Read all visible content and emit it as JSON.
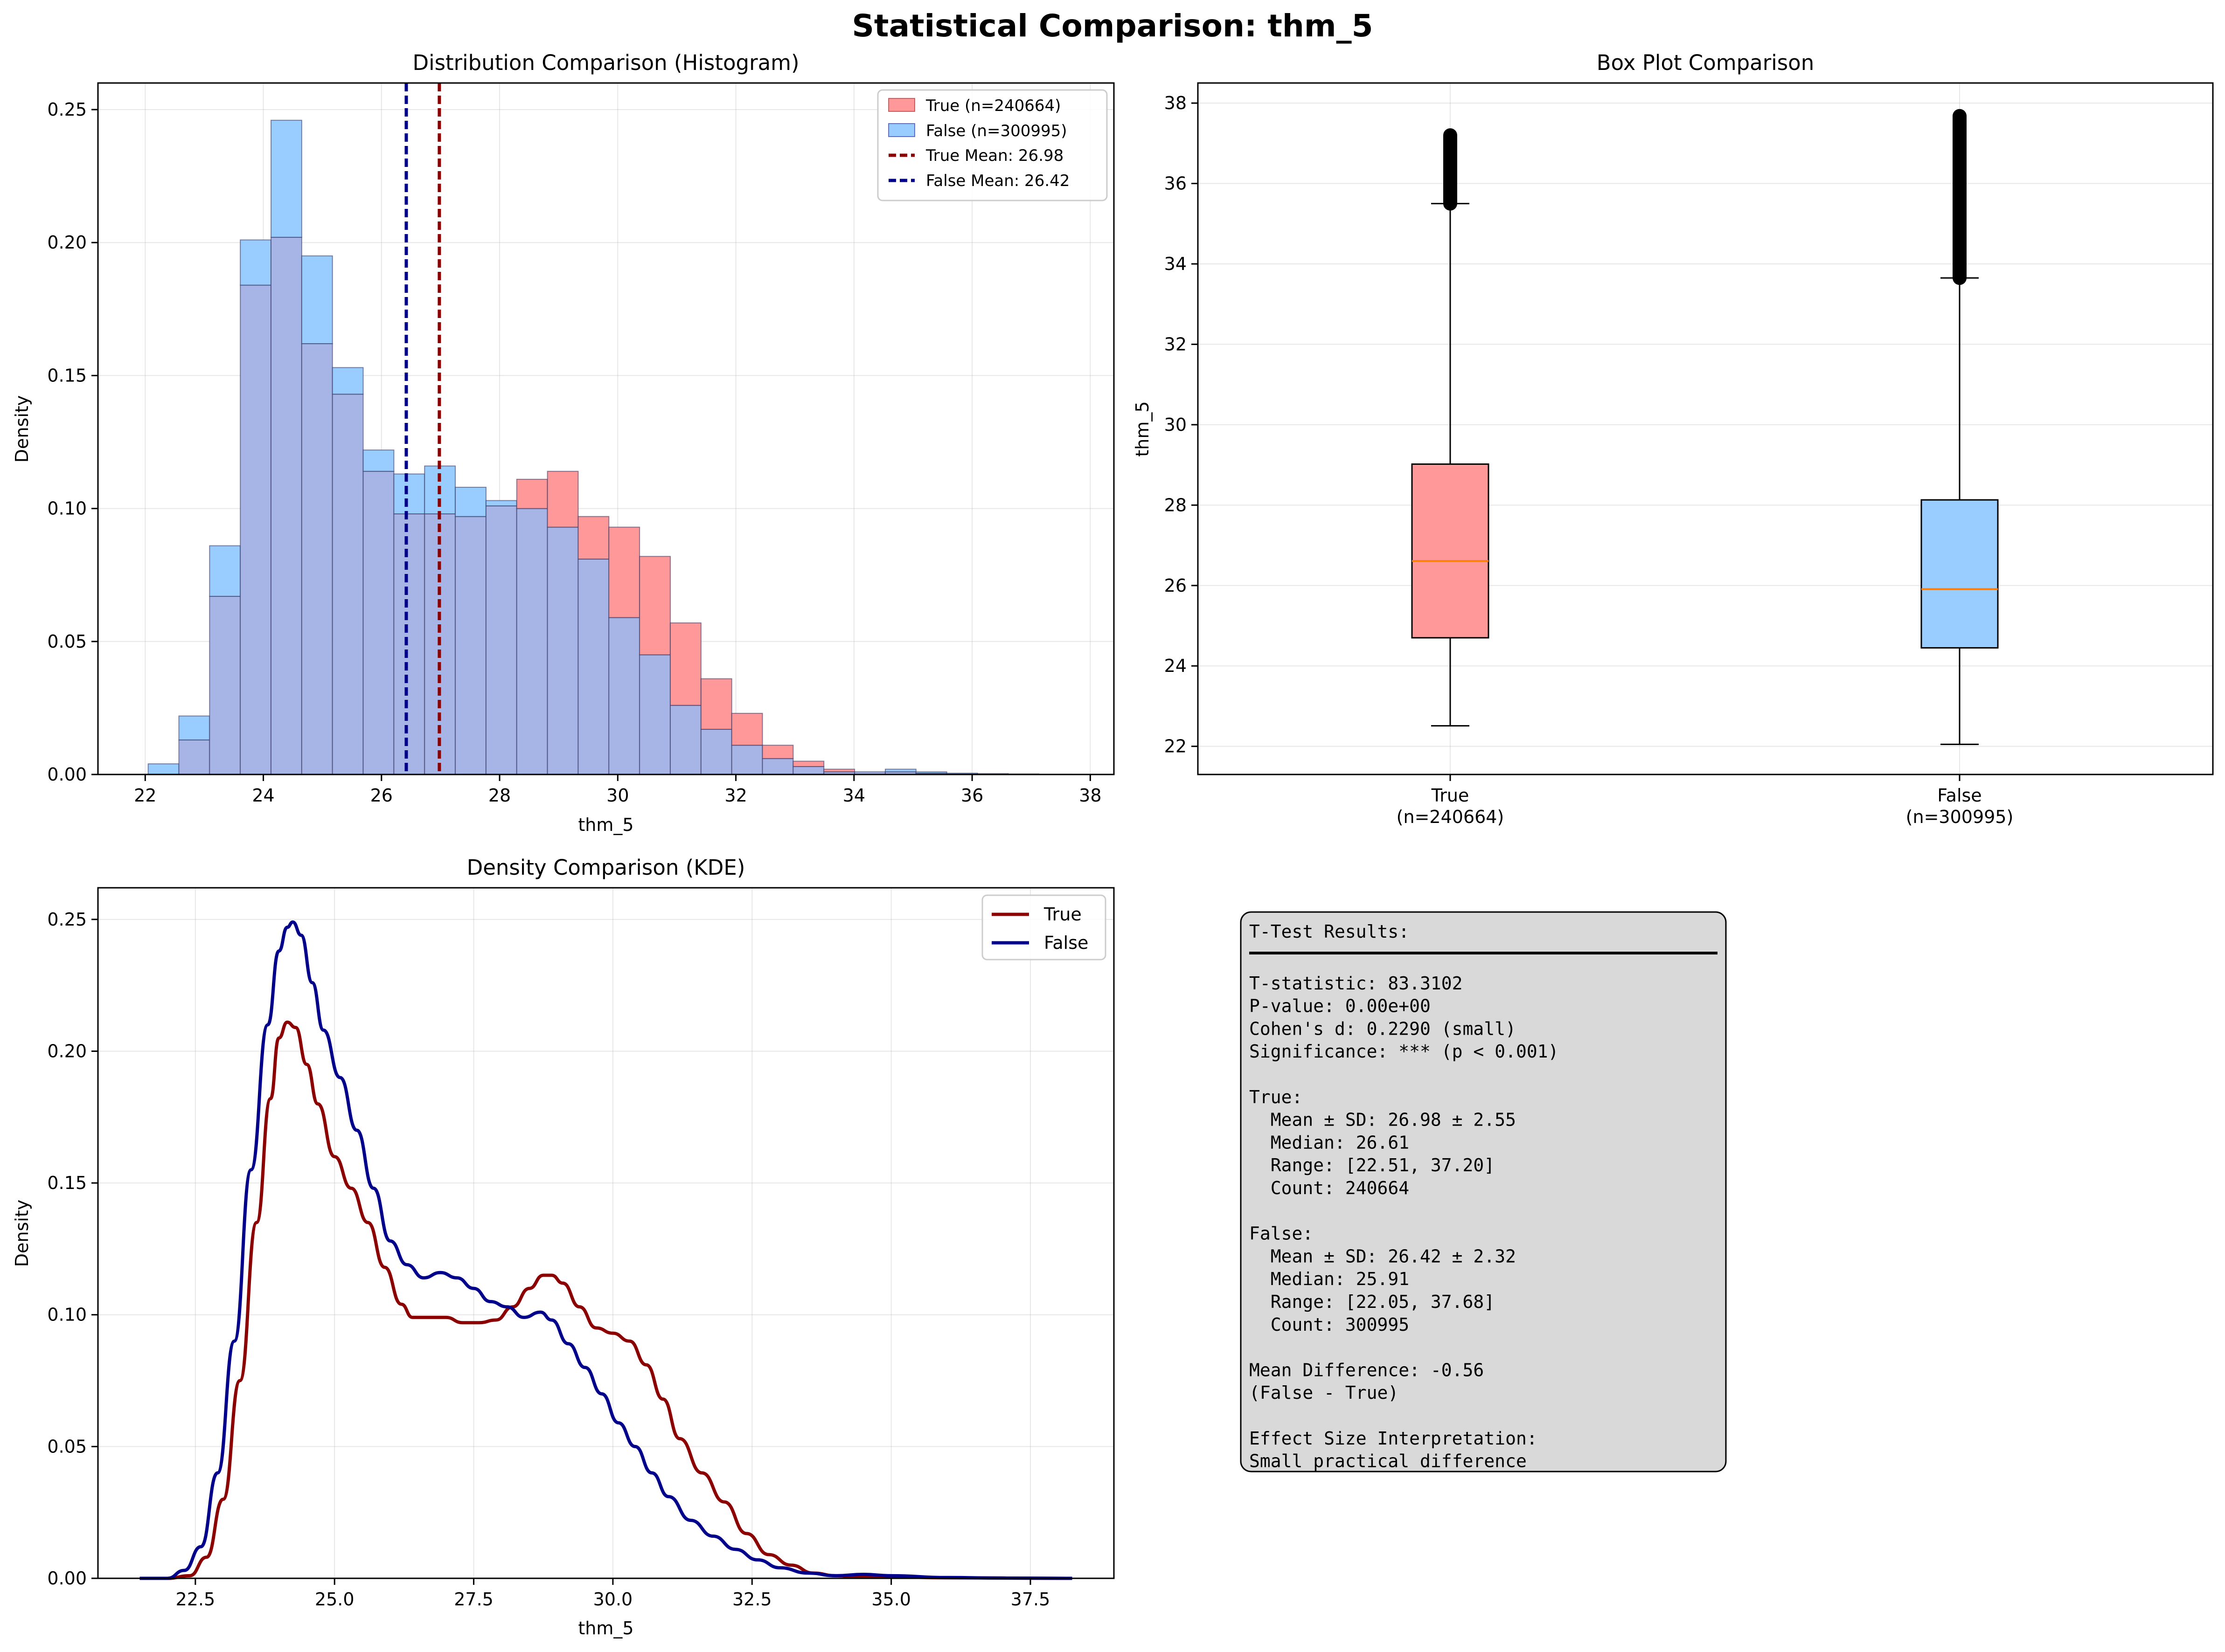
{
  "suptitle": "Statistical Comparison: thm_5",
  "colors": {
    "true_fill": "#ff9999",
    "false_fill": "#99ccff",
    "true_line": "#8b0000",
    "false_line": "#00008b",
    "overlap": "#a6b5e6",
    "median": "#ff7f0e",
    "stats_box": "#d9d9d9"
  },
  "chart_data": [
    {
      "type": "bar",
      "title": "Distribution Comparison (Histogram)",
      "xlabel": "thm_5",
      "ylabel": "Density",
      "xlim": [
        21.2,
        38.4
      ],
      "ylim": [
        0,
        0.26
      ],
      "xticks": [
        22,
        24,
        26,
        28,
        30,
        32,
        34,
        36,
        38
      ],
      "yticks": [
        0.0,
        0.05,
        0.1,
        0.15,
        0.2,
        0.25
      ],
      "grid": true,
      "legend": "top-right",
      "legend_entries": [
        "True (n=240664)",
        "False (n=300995)",
        "True Mean: 26.98",
        "False Mean: 26.42"
      ],
      "bin_edges": [
        22.05,
        22.57,
        23.09,
        23.61,
        24.13,
        24.65,
        25.17,
        25.69,
        26.21,
        26.73,
        27.25,
        27.77,
        28.29,
        28.81,
        29.33,
        29.85,
        30.37,
        30.89,
        31.41,
        31.93,
        32.45,
        32.97,
        33.49,
        34.01,
        34.53,
        35.05,
        35.57,
        36.09,
        36.61,
        37.13,
        37.68
      ],
      "series": [
        {
          "name": "True (n=240664)",
          "values": [
            0.0,
            0.013,
            0.067,
            0.184,
            0.202,
            0.162,
            0.143,
            0.114,
            0.098,
            0.098,
            0.097,
            0.101,
            0.111,
            0.114,
            0.097,
            0.093,
            0.082,
            0.057,
            0.036,
            0.023,
            0.011,
            0.005,
            0.002,
            0.001,
            0.001,
            0.0005,
            0.0003,
            0.0002,
            0.0001,
            0.0001
          ]
        },
        {
          "name": "False (n=300995)",
          "values": [
            0.004,
            0.022,
            0.086,
            0.201,
            0.246,
            0.195,
            0.153,
            0.122,
            0.113,
            0.116,
            0.108,
            0.103,
            0.1,
            0.093,
            0.081,
            0.059,
            0.045,
            0.026,
            0.017,
            0.011,
            0.006,
            0.003,
            0.001,
            0.001,
            0.002,
            0.001,
            0.0005,
            0.0003,
            0.0002,
            0.0001
          ]
        }
      ],
      "means": [
        {
          "name": "True Mean: 26.98",
          "value": 26.98
        },
        {
          "name": "False Mean: 26.42",
          "value": 26.42
        }
      ]
    },
    {
      "type": "box",
      "title": "Box Plot Comparison",
      "ylabel": "thm_5",
      "ylim": [
        21.3,
        38.5
      ],
      "yticks": [
        22,
        24,
        26,
        28,
        30,
        32,
        34,
        36,
        38
      ],
      "grid": true,
      "categories": [
        "True",
        "False"
      ],
      "category_counts": [
        "(n=240664)",
        "(n=300995)"
      ],
      "boxes": [
        {
          "name": "True",
          "whisker_low": 22.51,
          "q1": 24.7,
          "median": 26.61,
          "q3": 29.02,
          "whisker_high": 35.5,
          "outliers_from": 35.5,
          "outliers_to": 37.2
        },
        {
          "name": "False",
          "whisker_low": 22.05,
          "q1": 24.45,
          "median": 25.91,
          "q3": 28.13,
          "whisker_high": 33.65,
          "outliers_from": 33.65,
          "outliers_to": 37.68
        }
      ]
    },
    {
      "type": "line",
      "title": "Density Comparison (KDE)",
      "xlabel": "thm_5",
      "ylabel": "Density",
      "xlim": [
        20.75,
        39.0
      ],
      "ylim": [
        0,
        0.262
      ],
      "xticks": [
        22.5,
        25.0,
        27.5,
        30.0,
        32.5,
        35.0,
        37.5
      ],
      "yticks": [
        0.0,
        0.05,
        0.1,
        0.15,
        0.2,
        0.25
      ],
      "grid": true,
      "legend": "top-right",
      "series": [
        {
          "name": "True",
          "points": [
            [
              21.5,
              0.0
            ],
            [
              22.0,
              0.0
            ],
            [
              22.4,
              0.001
            ],
            [
              22.7,
              0.008
            ],
            [
              23.0,
              0.03
            ],
            [
              23.3,
              0.075
            ],
            [
              23.6,
              0.135
            ],
            [
              23.85,
              0.182
            ],
            [
              24.0,
              0.205
            ],
            [
              24.15,
              0.211
            ],
            [
              24.3,
              0.209
            ],
            [
              24.5,
              0.195
            ],
            [
              24.7,
              0.18
            ],
            [
              25.0,
              0.16
            ],
            [
              25.3,
              0.148
            ],
            [
              25.6,
              0.135
            ],
            [
              25.9,
              0.118
            ],
            [
              26.2,
              0.104
            ],
            [
              26.4,
              0.099
            ],
            [
              26.7,
              0.099
            ],
            [
              27.0,
              0.099
            ],
            [
              27.3,
              0.097
            ],
            [
              27.6,
              0.097
            ],
            [
              27.9,
              0.098
            ],
            [
              28.2,
              0.103
            ],
            [
              28.5,
              0.11
            ],
            [
              28.75,
              0.115
            ],
            [
              28.9,
              0.115
            ],
            [
              29.1,
              0.112
            ],
            [
              29.4,
              0.103
            ],
            [
              29.7,
              0.095
            ],
            [
              30.0,
              0.093
            ],
            [
              30.3,
              0.09
            ],
            [
              30.6,
              0.081
            ],
            [
              30.9,
              0.068
            ],
            [
              31.2,
              0.053
            ],
            [
              31.6,
              0.04
            ],
            [
              32.0,
              0.029
            ],
            [
              32.4,
              0.017
            ],
            [
              32.8,
              0.009
            ],
            [
              33.2,
              0.005
            ],
            [
              33.6,
              0.002
            ],
            [
              34.0,
              0.001
            ],
            [
              34.5,
              0.0005
            ],
            [
              35.0,
              0.0005
            ],
            [
              36.0,
              0.0002
            ],
            [
              37.0,
              0.0001
            ],
            [
              38.25,
              0.0
            ]
          ]
        },
        {
          "name": "False",
          "points": [
            [
              21.5,
              0.0
            ],
            [
              22.0,
              0.0
            ],
            [
              22.3,
              0.003
            ],
            [
              22.6,
              0.012
            ],
            [
              22.9,
              0.04
            ],
            [
              23.2,
              0.09
            ],
            [
              23.5,
              0.155
            ],
            [
              23.8,
              0.21
            ],
            [
              24.0,
              0.238
            ],
            [
              24.15,
              0.247
            ],
            [
              24.25,
              0.249
            ],
            [
              24.4,
              0.244
            ],
            [
              24.6,
              0.226
            ],
            [
              24.8,
              0.208
            ],
            [
              25.1,
              0.19
            ],
            [
              25.4,
              0.17
            ],
            [
              25.7,
              0.148
            ],
            [
              26.0,
              0.128
            ],
            [
              26.3,
              0.119
            ],
            [
              26.6,
              0.114
            ],
            [
              26.9,
              0.116
            ],
            [
              27.2,
              0.114
            ],
            [
              27.5,
              0.11
            ],
            [
              27.8,
              0.105
            ],
            [
              28.1,
              0.103
            ],
            [
              28.4,
              0.099
            ],
            [
              28.7,
              0.101
            ],
            [
              28.9,
              0.098
            ],
            [
              29.2,
              0.089
            ],
            [
              29.5,
              0.08
            ],
            [
              29.8,
              0.07
            ],
            [
              30.1,
              0.059
            ],
            [
              30.4,
              0.05
            ],
            [
              30.7,
              0.04
            ],
            [
              31.0,
              0.031
            ],
            [
              31.4,
              0.022
            ],
            [
              31.8,
              0.016
            ],
            [
              32.2,
              0.011
            ],
            [
              32.6,
              0.007
            ],
            [
              33.0,
              0.004
            ],
            [
              33.5,
              0.002
            ],
            [
              34.0,
              0.001
            ],
            [
              34.5,
              0.0015
            ],
            [
              35.0,
              0.001
            ],
            [
              36.0,
              0.0003
            ],
            [
              37.0,
              0.0001
            ],
            [
              38.25,
              0.0
            ]
          ]
        }
      ]
    }
  ],
  "stats_box": {
    "lines": [
      "T-Test Results:",
      "",
      "T-statistic: 83.3102",
      "P-value: 0.00e+00",
      "Cohen's d: 0.2290 (small)",
      "Significance: *** (p < 0.001)",
      "",
      "True:",
      "  Mean ± SD: 26.98 ± 2.55",
      "  Median: 26.61",
      "  Range: [22.51, 37.20]",
      "  Count: 240664",
      "",
      "False:",
      "  Mean ± SD: 26.42 ± 2.32",
      "  Median: 25.91",
      "  Range: [22.05, 37.68]",
      "  Count: 300995",
      "",
      "Mean Difference: -0.56",
      "(False - True)",
      "",
      "Effect Size Interpretation:",
      "Small practical difference"
    ]
  }
}
